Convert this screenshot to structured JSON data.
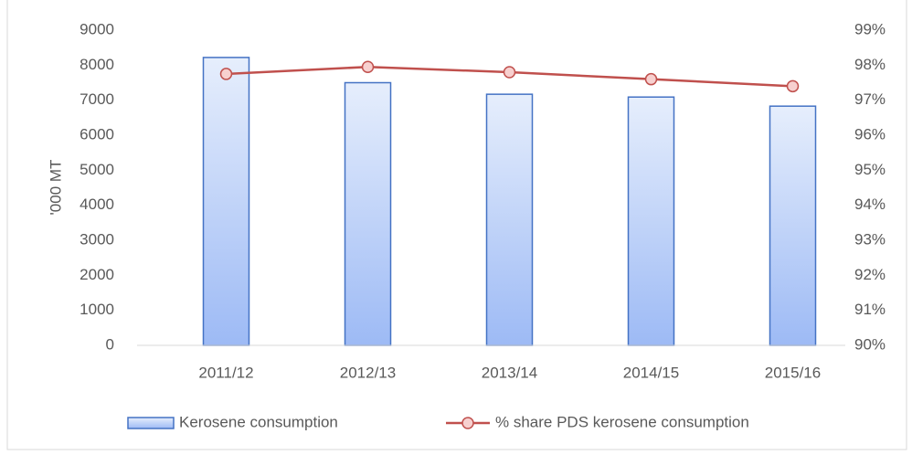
{
  "chart_data": {
    "type": "bar",
    "y_label": "'000 MT",
    "categories": [
      "2011/12",
      "2012/13",
      "2013/14",
      "2014/15",
      "2015/16"
    ],
    "series": [
      {
        "name": "Kerosene consumption",
        "type": "bar",
        "color": "#4472c4",
        "values": [
          8220,
          7500,
          7170,
          7090,
          6830
        ]
      },
      {
        "name": "% share PDS kerosene consumption",
        "type": "line",
        "axis": "y2",
        "color": "#c0504d",
        "values": [
          97.75,
          97.95,
          97.8,
          97.6,
          97.4
        ]
      }
    ],
    "ylim": [
      0,
      9000
    ],
    "yticks": [
      0,
      1000,
      2000,
      3000,
      4000,
      5000,
      6000,
      7000,
      8000,
      9000
    ],
    "y2lim": [
      90,
      99
    ],
    "y2ticks": [
      {
        "value": 90,
        "label": "90%"
      },
      {
        "value": 91,
        "label": "91%"
      },
      {
        "value": 92,
        "label": "92%"
      },
      {
        "value": 93,
        "label": "93%"
      },
      {
        "value": 94,
        "label": "94%"
      },
      {
        "value": 95,
        "label": "95%"
      },
      {
        "value": 96,
        "label": "96%"
      },
      {
        "value": 97,
        "label": "97%"
      },
      {
        "value": 98,
        "label": "98%"
      },
      {
        "value": 99,
        "label": "99%"
      }
    ],
    "grid": false,
    "legend": "bottom"
  }
}
